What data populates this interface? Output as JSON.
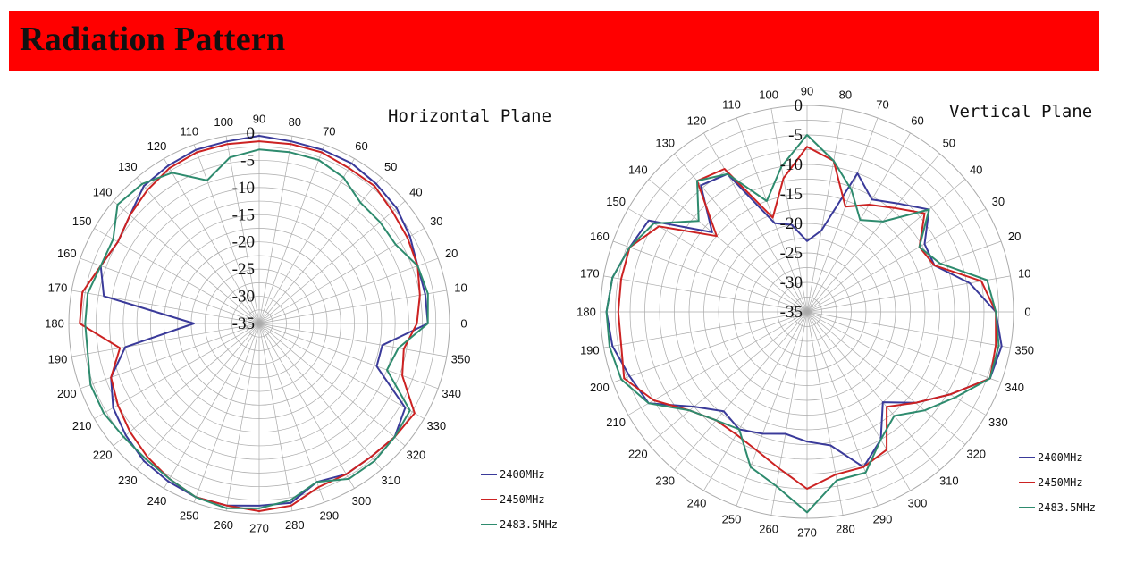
{
  "header": {
    "title": "Radiation Pattern"
  },
  "colors": {
    "banner": "#ff0000",
    "grid": "#aaaaaa"
  },
  "chart_data": [
    {
      "type": "polar-line",
      "title": "Horizontal Plane",
      "angle_unit": "deg",
      "angle_ticks": [
        0,
        10,
        20,
        30,
        40,
        50,
        60,
        70,
        80,
        90,
        100,
        110,
        120,
        130,
        140,
        150,
        160,
        170,
        180,
        190,
        200,
        210,
        220,
        230,
        240,
        250,
        260,
        270,
        280,
        290,
        300,
        310,
        320,
        330,
        340,
        350
      ],
      "radial_ticks": [
        0,
        -5,
        -10,
        -15,
        -20,
        -25,
        -30,
        -35
      ],
      "radial_range": [
        -35,
        0
      ],
      "grid": true,
      "legend_position": "bottom-right",
      "series": [
        {
          "name": "2400MHz",
          "color": "#3a3a9a",
          "angles": [
            0,
            10,
            20,
            30,
            40,
            50,
            60,
            70,
            80,
            90,
            100,
            110,
            120,
            130,
            140,
            150,
            160,
            170,
            180,
            190,
            200,
            210,
            220,
            230,
            240,
            250,
            260,
            270,
            280,
            290,
            300,
            310,
            320,
            330,
            340,
            350
          ],
          "values": [
            -4,
            -4,
            -4,
            -3,
            -2,
            -1.5,
            -1,
            -1,
            -1,
            -0.5,
            -1,
            -1,
            -1.5,
            -2,
            -4,
            -5,
            -4,
            -6,
            -23,
            -10,
            -6,
            -4,
            -3,
            -2,
            -1.5,
            -1,
            -1,
            -1.5,
            -1.5,
            -4,
            -3,
            -3,
            -2.5,
            -4,
            -12,
            -12
          ]
        },
        {
          "name": "2450MHz",
          "color": "#cc2222",
          "angles": [
            0,
            10,
            20,
            30,
            40,
            50,
            60,
            70,
            80,
            90,
            100,
            110,
            120,
            130,
            140,
            150,
            160,
            170,
            180,
            190,
            200,
            210,
            220,
            230,
            240,
            250,
            260,
            270,
            280,
            290,
            300,
            310,
            320,
            330,
            340,
            350
          ],
          "values": [
            -6,
            -5,
            -4,
            -3.5,
            -3,
            -2,
            -2,
            -1.5,
            -1.5,
            -1.5,
            -1.5,
            -1.5,
            -2,
            -3,
            -4,
            -5,
            -4,
            -2,
            -2,
            -9,
            -6,
            -5,
            -4,
            -3,
            -2,
            -1,
            -1,
            -0.5,
            -1,
            -3,
            -3,
            -3,
            -2.5,
            -2,
            -7,
            -8
          ]
        },
        {
          "name": "2483.5MHz",
          "color": "#2e8b6e",
          "angles": [
            0,
            10,
            20,
            30,
            40,
            50,
            60,
            70,
            80,
            90,
            100,
            110,
            120,
            130,
            140,
            150,
            160,
            170,
            180,
            190,
            200,
            210,
            220,
            230,
            240,
            250,
            260,
            270,
            280,
            290,
            300,
            310,
            320,
            330,
            340,
            350
          ],
          "values": [
            -4,
            -3.5,
            -4,
            -6,
            -6,
            -6,
            -4,
            -3,
            -3,
            -3,
            -4,
            -7,
            -3,
            -1.5,
            -1,
            -4,
            -4,
            -3,
            -3,
            -3,
            -2,
            -2,
            -2.5,
            -2.5,
            -2,
            -1,
            -0.5,
            -1,
            -2,
            -4,
            -2,
            -2,
            -2.5,
            -3,
            -10,
            -9
          ]
        }
      ]
    },
    {
      "type": "polar-line",
      "title": "Vertical Plane",
      "angle_unit": "deg",
      "angle_ticks": [
        0,
        10,
        20,
        30,
        40,
        50,
        60,
        70,
        80,
        90,
        100,
        110,
        120,
        130,
        140,
        150,
        160,
        170,
        180,
        190,
        200,
        210,
        220,
        230,
        240,
        250,
        260,
        270,
        280,
        290,
        300,
        310,
        320,
        330,
        340,
        350
      ],
      "radial_ticks": [
        0,
        -5,
        -10,
        -15,
        -20,
        -25,
        -30,
        -35
      ],
      "radial_range": [
        -35,
        0
      ],
      "grid": true,
      "legend_position": "bottom-right",
      "series": [
        {
          "name": "2400MHz",
          "color": "#3a3a9a",
          "angles": [
            0,
            10,
            20,
            30,
            40,
            50,
            60,
            70,
            80,
            90,
            100,
            110,
            120,
            130,
            140,
            150,
            160,
            170,
            180,
            190,
            200,
            210,
            220,
            230,
            240,
            250,
            260,
            270,
            280,
            290,
            300,
            310,
            320,
            330,
            340,
            350
          ],
          "values": [
            -3,
            -7,
            -12,
            -12,
            -8,
            -11,
            -13,
            -10,
            -21,
            -23,
            -20,
            -19,
            -8,
            -7,
            -14,
            -4,
            -3,
            -1.5,
            -1,
            -1.5,
            -3,
            -4,
            -10,
            -13,
            -12,
            -13,
            -14,
            -13,
            -12,
            -7,
            -10,
            -15,
            -11,
            -7,
            -2,
            -1.5
          ]
        },
        {
          "name": "2450MHz",
          "color": "#cc2222",
          "angles": [
            0,
            10,
            20,
            30,
            40,
            50,
            60,
            70,
            80,
            90,
            100,
            110,
            120,
            130,
            140,
            150,
            160,
            170,
            180,
            190,
            200,
            210,
            220,
            230,
            240,
            250,
            260,
            270,
            280,
            290,
            300,
            310,
            320,
            330,
            340,
            350
          ],
          "values": [
            -3,
            -5,
            -12,
            -13,
            -9,
            -12,
            -14,
            -16,
            -9,
            -7,
            -12,
            -18,
            -7,
            -6,
            -15,
            -6,
            -3,
            -3,
            -3,
            -3,
            -2,
            -5,
            -9,
            -11,
            -11,
            -10,
            -8,
            -5,
            -7,
            -7,
            -8,
            -14,
            -11,
            -7,
            -2,
            -2.5
          ]
        },
        {
          "name": "2483.5MHz",
          "color": "#2e8b6e",
          "angles": [
            0,
            10,
            20,
            30,
            40,
            50,
            60,
            70,
            80,
            90,
            100,
            110,
            120,
            130,
            140,
            150,
            160,
            170,
            180,
            190,
            200,
            210,
            220,
            230,
            240,
            250,
            260,
            270,
            280,
            290,
            300,
            310,
            320,
            330,
            340,
            350
          ],
          "values": [
            -3,
            -4,
            -11,
            -13,
            -8,
            -15,
            -17,
            -13,
            -9,
            -5,
            -10,
            -15,
            -8,
            -6,
            -11,
            -5,
            -3,
            -1.5,
            -1,
            -1,
            -1.5,
            -4,
            -9,
            -11,
            -12,
            -7,
            -5,
            -1,
            -6,
            -6,
            -10,
            -12,
            -9,
            -6,
            -2,
            -2
          ]
        }
      ]
    }
  ]
}
